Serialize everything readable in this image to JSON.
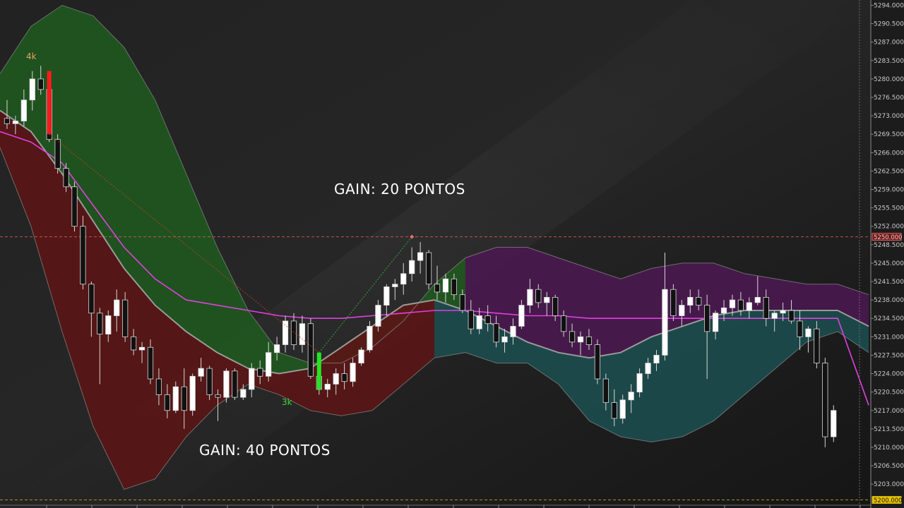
{
  "chart_data": {
    "type": "candlestick",
    "ylim": [
      5199,
      5295
    ],
    "y_ticks": [
      "5294.000",
      "5290.500",
      "5287.000",
      "5283.500",
      "5280.000",
      "5276.500",
      "5273.000",
      "5269.500",
      "5266.000",
      "5262.500",
      "5259.000",
      "5255.500",
      "5252.000",
      "5248.500",
      "5245.000",
      "5241.500",
      "5238.000",
      "5234.500",
      "5231.000",
      "5227.500",
      "5224.000",
      "5220.500",
      "5217.000",
      "5213.500",
      "5210.000",
      "5206.500",
      "5203.000"
    ],
    "h_lines": [
      {
        "price": 5250.0,
        "tag": "5250.000",
        "color": "#e06060"
      },
      {
        "price": 5200.0,
        "tag": "5200.000",
        "color": "#d4b400"
      }
    ],
    "annotations": [
      {
        "text": "GAIN: 20 PONTOS"
      },
      {
        "text": "GAIN: 40 PONTOS"
      }
    ],
    "volume_labels": [
      {
        "text": "4k",
        "color": "#f0a060"
      },
      {
        "text": "3k",
        "color": "#3ad83a"
      }
    ],
    "candles": [
      [
        5272.5,
        5276.0,
        5270.5,
        5271.5
      ],
      [
        5271.5,
        5273.0,
        5269.5,
        5272.0
      ],
      [
        5272.0,
        5278.0,
        5271.0,
        5276.0
      ],
      [
        5276.0,
        5281.5,
        5274.0,
        5280.0
      ],
      [
        5280.0,
        5282.5,
        5277.0,
        5278.0
      ],
      [
        5278.0,
        5279.0,
        5268.0,
        5268.5
      ],
      [
        5268.5,
        5269.5,
        5262.0,
        5263.0
      ],
      [
        5263.0,
        5264.0,
        5258.5,
        5259.5
      ],
      [
        5259.5,
        5260.5,
        5251.0,
        5252.0
      ],
      [
        5252.0,
        5254.0,
        5240.0,
        5241.0
      ],
      [
        5241.0,
        5241.5,
        5231.0,
        5235.5
      ],
      [
        5235.5,
        5236.5,
        5222.0,
        5231.5
      ],
      [
        5231.5,
        5236.0,
        5230.0,
        5235.0
      ],
      [
        5235.0,
        5240.0,
        5232.0,
        5238.0
      ],
      [
        5238.0,
        5239.5,
        5230.0,
        5231.0
      ],
      [
        5231.0,
        5232.5,
        5227.5,
        5228.5
      ],
      [
        5228.5,
        5230.0,
        5226.0,
        5229.0
      ],
      [
        5229.0,
        5230.5,
        5222.0,
        5223.0
      ],
      [
        5223.0,
        5225.0,
        5218.0,
        5220.0
      ],
      [
        5220.0,
        5222.0,
        5215.5,
        5217.0
      ],
      [
        5217.0,
        5222.5,
        5216.5,
        5221.5
      ],
      [
        5221.5,
        5225.0,
        5213.5,
        5217.0
      ],
      [
        5217.0,
        5224.0,
        5216.0,
        5223.5
      ],
      [
        5223.5,
        5227.0,
        5222.5,
        5225.0
      ],
      [
        5225.0,
        5225.5,
        5219.0,
        5220.0
      ],
      [
        5220.0,
        5221.0,
        5215.0,
        5219.5
      ],
      [
        5219.5,
        5225.0,
        5218.5,
        5224.5
      ],
      [
        5224.5,
        5225.0,
        5219.0,
        5219.5
      ],
      [
        5219.5,
        5222.0,
        5219.0,
        5221.0
      ],
      [
        5221.0,
        5226.0,
        5219.5,
        5225.0
      ],
      [
        5225.0,
        5226.5,
        5222.0,
        5223.5
      ],
      [
        5223.5,
        5230.0,
        5222.5,
        5228.0
      ],
      [
        5228.0,
        5231.0,
        5226.5,
        5229.5
      ],
      [
        5229.5,
        5235.0,
        5228.0,
        5234.0
      ],
      [
        5234.0,
        5235.5,
        5228.5,
        5229.5
      ],
      [
        5229.5,
        5235.0,
        5228.0,
        5233.5
      ],
      [
        5233.5,
        5234.5,
        5223.0,
        5223.5
      ],
      [
        5223.5,
        5225.0,
        5220.0,
        5221.0
      ],
      [
        5221.0,
        5223.0,
        5219.5,
        5222.0
      ],
      [
        5222.0,
        5225.0,
        5220.0,
        5224.0
      ],
      [
        5224.0,
        5226.0,
        5221.0,
        5222.5
      ],
      [
        5222.5,
        5227.0,
        5221.5,
        5226.0
      ],
      [
        5226.0,
        5229.0,
        5225.5,
        5228.5
      ],
      [
        5228.5,
        5234.0,
        5228.0,
        5233.0
      ],
      [
        5233.0,
        5238.0,
        5232.0,
        5237.0
      ],
      [
        5237.0,
        5241.0,
        5235.0,
        5240.5
      ],
      [
        5240.5,
        5242.0,
        5238.0,
        5241.0
      ],
      [
        5241.0,
        5245.0,
        5239.0,
        5243.0
      ],
      [
        5243.0,
        5248.0,
        5241.5,
        5245.5
      ],
      [
        5245.5,
        5249.0,
        5243.0,
        5247.0
      ],
      [
        5247.0,
        5247.5,
        5240.0,
        5241.0
      ],
      [
        5241.0,
        5244.5,
        5238.0,
        5239.5
      ],
      [
        5239.5,
        5243.0,
        5237.5,
        5242.0
      ],
      [
        5242.0,
        5243.0,
        5238.0,
        5239.0
      ],
      [
        5239.0,
        5240.0,
        5235.5,
        5236.0
      ],
      [
        5236.0,
        5238.0,
        5231.5,
        5232.5
      ],
      [
        5232.5,
        5236.5,
        5231.5,
        5235.0
      ],
      [
        5235.0,
        5237.0,
        5232.0,
        5233.5
      ],
      [
        5233.5,
        5235.0,
        5229.0,
        5230.0
      ],
      [
        5230.0,
        5232.5,
        5228.0,
        5231.0
      ],
      [
        5231.0,
        5234.5,
        5229.5,
        5233.0
      ],
      [
        5233.0,
        5238.0,
        5232.5,
        5237.0
      ],
      [
        5237.0,
        5242.0,
        5235.5,
        5240.0
      ],
      [
        5240.0,
        5241.0,
        5236.5,
        5237.5
      ],
      [
        5237.5,
        5239.5,
        5235.0,
        5238.5
      ],
      [
        5238.5,
        5239.0,
        5234.0,
        5235.0
      ],
      [
        5235.0,
        5236.0,
        5231.0,
        5232.0
      ],
      [
        5232.0,
        5233.5,
        5229.0,
        5230.0
      ],
      [
        5230.0,
        5232.0,
        5227.5,
        5231.0
      ],
      [
        5231.0,
        5232.5,
        5228.5,
        5229.5
      ],
      [
        5229.5,
        5230.5,
        5222.0,
        5223.0
      ],
      [
        5223.0,
        5224.0,
        5217.0,
        5218.5
      ],
      [
        5218.5,
        5221.0,
        5214.0,
        5215.5
      ],
      [
        5215.5,
        5220.0,
        5214.5,
        5219.0
      ],
      [
        5219.0,
        5222.0,
        5216.5,
        5220.5
      ],
      [
        5220.5,
        5225.0,
        5219.5,
        5224.0
      ],
      [
        5224.0,
        5227.0,
        5223.0,
        5226.0
      ],
      [
        5226.0,
        5228.5,
        5224.5,
        5227.5
      ],
      [
        5227.5,
        5247.0,
        5226.5,
        5240.0
      ],
      [
        5240.0,
        5241.0,
        5234.0,
        5235.0
      ],
      [
        5235.0,
        5238.0,
        5233.0,
        5237.0
      ],
      [
        5237.0,
        5240.0,
        5235.5,
        5238.5
      ],
      [
        5238.5,
        5240.0,
        5236.0,
        5237.0
      ],
      [
        5237.0,
        5239.0,
        5223.0,
        5232.0
      ],
      [
        5232.0,
        5236.0,
        5230.5,
        5235.5
      ],
      [
        5235.5,
        5238.0,
        5234.0,
        5236.5
      ],
      [
        5236.5,
        5239.0,
        5235.0,
        5238.0
      ],
      [
        5238.0,
        5239.5,
        5235.0,
        5236.0
      ],
      [
        5236.0,
        5238.5,
        5234.5,
        5237.5
      ],
      [
        5237.5,
        5242.5,
        5237.0,
        5238.5
      ],
      [
        5238.5,
        5240.0,
        5233.0,
        5234.5
      ],
      [
        5234.5,
        5236.0,
        5232.0,
        5235.5
      ],
      [
        5235.5,
        5237.5,
        5234.0,
        5236.0
      ],
      [
        5236.0,
        5238.0,
        5233.5,
        5234.0
      ],
      [
        5234.0,
        5236.0,
        5228.5,
        5231.0
      ],
      [
        5231.0,
        5233.0,
        5228.0,
        5232.5
      ],
      [
        5232.5,
        5234.0,
        5225.0,
        5226.0
      ],
      [
        5226.0,
        5227.0,
        5210.0,
        5212.0
      ],
      [
        5212.0,
        5218.0,
        5211.0,
        5217.0
      ]
    ],
    "signals": [
      {
        "type": "sell",
        "candle": 5,
        "high": 5281.5,
        "low": 5269.5,
        "color": "#ff1a1a"
      },
      {
        "type": "buy",
        "candle": 37,
        "high": 5228.0,
        "low": 5221.0,
        "color": "#22e622"
      }
    ],
    "target_marks": [
      {
        "candle": 48,
        "price": 5250.0,
        "color": "#ff6a5a"
      }
    ],
    "bands": {
      "upper": [
        5281,
        5290,
        5294,
        5292,
        5286,
        5276,
        5262,
        5248,
        5236,
        5228,
        5226,
        5226,
        5229,
        5234,
        5241,
        5246,
        5248,
        5248,
        5246,
        5244,
        5242,
        5244,
        5245,
        5245,
        5243,
        5242,
        5241,
        5241,
        5239
      ],
      "middle": [
        5274,
        5270,
        5262,
        5253,
        5244,
        5237,
        5232,
        5228,
        5225,
        5224,
        5225,
        5229,
        5233,
        5237,
        5238,
        5236,
        5233,
        5230,
        5228,
        5227,
        5228,
        5231,
        5233,
        5235,
        5236,
        5236,
        5236,
        5236,
        5233
      ],
      "lower": [
        5267,
        5252,
        5232,
        5214,
        5202,
        5204,
        5212,
        5218,
        5222,
        5220,
        5217,
        5216,
        5217,
        5222,
        5227,
        5228,
        5226,
        5226,
        5222,
        5215,
        5212,
        5211,
        5212,
        5215,
        5220,
        5225,
        5230,
        5232,
        5228
      ]
    },
    "ma": [
      5270,
      5268,
      5264,
      5256,
      5248,
      5242,
      5238,
      5237,
      5236,
      5235,
      5234.5,
      5234.5,
      5235,
      5235.5,
      5236,
      5236,
      5235.5,
      5235,
      5235,
      5234.5,
      5234.5,
      5234.5,
      5234.5,
      5234.5,
      5234.5,
      5234.5,
      5234.5,
      5234.5,
      5218
    ]
  }
}
